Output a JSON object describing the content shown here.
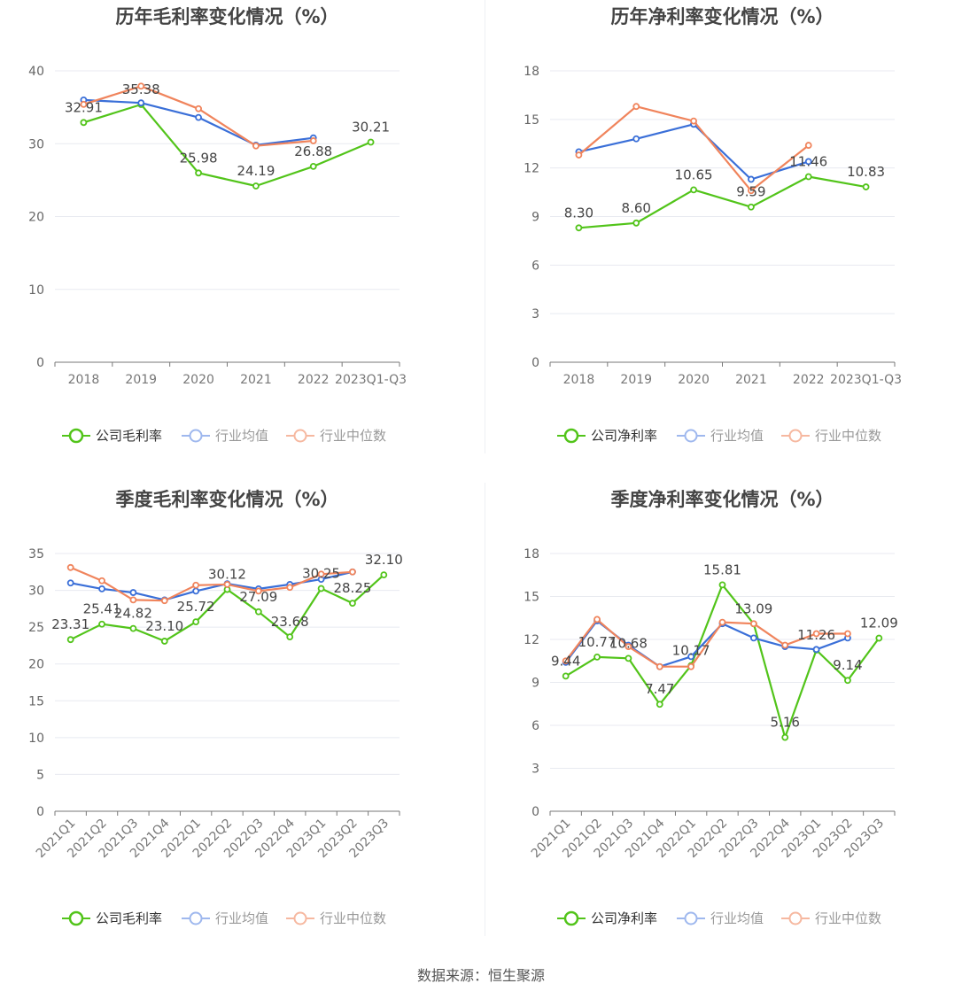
{
  "source": "数据来源：恒生聚源",
  "legend": {
    "company_gross": "公司毛利率",
    "company_net": "公司净利率",
    "industry_avg": "行业均值",
    "industry_median": "行业中位数"
  },
  "colors": {
    "company": "#52c41a",
    "industry_avg": "#3a6fd8",
    "industry_median": "#f0845c"
  },
  "chart_data": [
    {
      "id": "annual-gross",
      "type": "line",
      "title": "历年毛利率变化情况（%）",
      "categories": [
        "2018",
        "2019",
        "2020",
        "2021",
        "2022",
        "2023Q1-Q3"
      ],
      "ylim": [
        0,
        40
      ],
      "yticks": [
        0,
        10,
        20,
        30,
        40
      ],
      "series": [
        {
          "name": "公司毛利率",
          "key": "company",
          "values": [
            32.91,
            35.38,
            25.98,
            24.19,
            26.88,
            30.21
          ],
          "labels": [
            "32.91",
            "35.38",
            "25.98",
            "24.19",
            "26.88",
            "30.21"
          ]
        },
        {
          "name": "行业均值",
          "key": "industry_avg",
          "values": [
            36.0,
            35.6,
            33.6,
            29.8,
            30.8,
            null
          ]
        },
        {
          "name": "行业中位数",
          "key": "industry_median",
          "values": [
            35.4,
            37.9,
            34.8,
            29.7,
            30.4,
            null
          ]
        }
      ]
    },
    {
      "id": "annual-net",
      "type": "line",
      "title": "历年净利率变化情况（%）",
      "categories": [
        "2018",
        "2019",
        "2020",
        "2021",
        "2022",
        "2023Q1-Q3"
      ],
      "ylim": [
        0,
        18
      ],
      "yticks": [
        0,
        3,
        6,
        9,
        12,
        15,
        18
      ],
      "series": [
        {
          "name": "公司净利率",
          "key": "company",
          "values": [
            8.3,
            8.6,
            10.65,
            9.59,
            11.46,
            10.83
          ],
          "labels": [
            "8.30",
            "8.60",
            "10.65",
            "9.59",
            "11.46",
            "10.83"
          ]
        },
        {
          "name": "行业均值",
          "key": "industry_avg",
          "values": [
            13.0,
            13.8,
            14.7,
            11.3,
            12.4,
            null
          ]
        },
        {
          "name": "行业中位数",
          "key": "industry_median",
          "values": [
            12.8,
            15.8,
            14.9,
            10.6,
            13.4,
            null
          ]
        }
      ]
    },
    {
      "id": "quarterly-gross",
      "type": "line",
      "title": "季度毛利率变化情况（%）",
      "categories": [
        "2021Q1",
        "2021Q2",
        "2021Q3",
        "2021Q4",
        "2022Q1",
        "2022Q2",
        "2022Q3",
        "2022Q4",
        "2023Q1",
        "2023Q2",
        "2023Q3"
      ],
      "ylim": [
        0,
        35
      ],
      "yticks": [
        0,
        5,
        10,
        15,
        20,
        25,
        30,
        35
      ],
      "series": [
        {
          "name": "公司毛利率",
          "key": "company",
          "values": [
            23.31,
            25.41,
            24.82,
            23.1,
            25.72,
            30.12,
            27.09,
            23.68,
            30.25,
            28.25,
            32.1
          ],
          "labels": [
            "23.31",
            "25.41",
            "24.82",
            "23.10",
            "25.72",
            "30.12",
            "27.09",
            "23.68",
            "30.25",
            "28.25",
            "32.10"
          ]
        },
        {
          "name": "行业均值",
          "key": "industry_avg",
          "values": [
            31.0,
            30.2,
            29.7,
            28.7,
            29.9,
            30.9,
            30.2,
            30.8,
            31.5,
            32.5,
            null
          ]
        },
        {
          "name": "行业中位数",
          "key": "industry_median",
          "values": [
            33.1,
            31.3,
            28.7,
            28.6,
            30.7,
            30.8,
            29.9,
            30.4,
            32.2,
            32.5,
            null
          ]
        }
      ]
    },
    {
      "id": "quarterly-net",
      "type": "line",
      "title": "季度净利率变化情况（%）",
      "categories": [
        "2021Q1",
        "2021Q2",
        "2021Q3",
        "2021Q4",
        "2022Q1",
        "2022Q2",
        "2022Q3",
        "2022Q4",
        "2023Q1",
        "2023Q2",
        "2023Q3"
      ],
      "ylim": [
        0,
        18
      ],
      "yticks": [
        0,
        3,
        6,
        9,
        12,
        15,
        18
      ],
      "series": [
        {
          "name": "公司净利率",
          "key": "company",
          "values": [
            9.44,
            10.77,
            10.68,
            7.47,
            10.17,
            15.81,
            13.09,
            5.16,
            11.26,
            9.14,
            12.09
          ],
          "labels": [
            "9.44",
            "10.77",
            "10.68",
            "7.47",
            "10.17",
            "15.81",
            "13.09",
            "5.16",
            "11.26",
            "9.14",
            "12.09"
          ]
        },
        {
          "name": "行业均值",
          "key": "industry_avg",
          "values": [
            10.4,
            13.3,
            11.6,
            10.1,
            10.8,
            13.1,
            12.1,
            11.5,
            11.3,
            12.1,
            null
          ]
        },
        {
          "name": "行业中位数",
          "key": "industry_median",
          "values": [
            10.5,
            13.4,
            11.5,
            10.1,
            10.1,
            13.2,
            13.1,
            11.6,
            12.4,
            12.4,
            null
          ]
        }
      ]
    }
  ]
}
